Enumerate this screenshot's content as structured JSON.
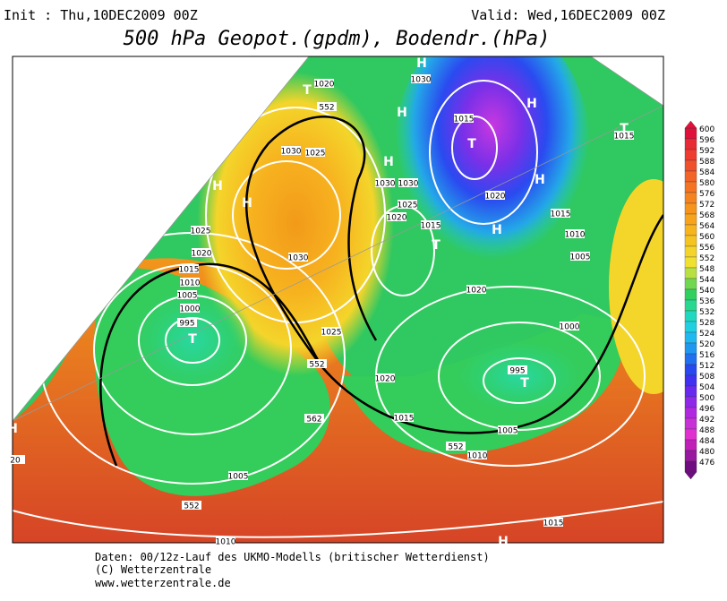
{
  "header": {
    "init": "Init : Thu,10DEC2009 00Z",
    "valid": "Valid: Wed,16DEC2009 00Z",
    "title": "500 hPa Geopot.(gpdm), Bodendr.(hPa)"
  },
  "footer": [
    "Daten: 00/12z-Lauf des UKMO-Modells (britischer Wetterdienst)",
    "(C) Wetterzentrale",
    "www.wetterzentrale.de"
  ],
  "map_labels": [
    "1020",
    "1030",
    "H",
    "T",
    "552",
    "H",
    "1015",
    "T",
    "H",
    "T",
    "1015",
    "1030",
    "1025",
    "H",
    "H",
    "H",
    "H",
    "1030",
    "1030",
    "1025",
    "1020",
    "1015",
    "T",
    "1020",
    "H",
    "1015",
    "1010",
    "1005",
    "1025",
    "1020",
    "1030",
    "1015",
    "1010",
    "1005",
    "1000",
    "995",
    "T",
    "1020",
    "1025",
    "1000",
    "552",
    "1020",
    "995",
    "T",
    "562",
    "1015",
    "1005",
    "552",
    "1010",
    "1005",
    "552",
    "1010",
    "1015",
    "H",
    "H",
    "20"
  ],
  "colorbar": {
    "ticks": [
      600,
      596,
      592,
      588,
      584,
      580,
      576,
      572,
      568,
      564,
      560,
      556,
      552,
      548,
      544,
      540,
      536,
      532,
      528,
      524,
      520,
      516,
      512,
      508,
      504,
      500,
      496,
      492,
      488,
      484,
      480,
      476
    ],
    "colors": [
      "#e0103a",
      "#e82a34",
      "#ee3c30",
      "#f0502c",
      "#f26428",
      "#f47424",
      "#f58420",
      "#f6941c",
      "#f7a41c",
      "#f7b41e",
      "#f6c422",
      "#f4d42a",
      "#f0e030",
      "#b8e040",
      "#70d850",
      "#30d060",
      "#28d890",
      "#20d8c0",
      "#20d0e0",
      "#20b8f0",
      "#2098f0",
      "#2070f0",
      "#2848f0",
      "#4030f0",
      "#6828f0",
      "#9028e8",
      "#b028e0",
      "#c830d8",
      "#e030d0",
      "#c020b8",
      "#9818a0",
      "#700c80"
    ]
  }
}
